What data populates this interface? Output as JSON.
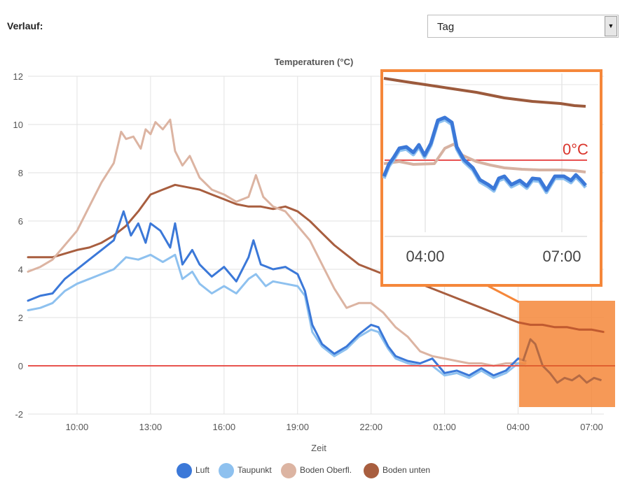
{
  "header": {
    "title": "Verlauf:"
  },
  "range_select": {
    "value": "Tag",
    "arrow_glyph": "▼"
  },
  "inset": {
    "label": "0°C",
    "ticks": [
      "04:00",
      "07:00"
    ]
  },
  "colors": {
    "luft": "#3b78d8",
    "taupunkt": "#8ec1ef",
    "boden_oberfl": "#dcb4a2",
    "boden_unten": "#a85e3f",
    "zero_line": "#e8544e",
    "highlight": "#f5873a"
  },
  "chart_data": {
    "type": "line",
    "title": "Temperaturen (°C)",
    "xlabel": "Zeit",
    "ylabel": "",
    "ylim": [
      -2,
      12
    ],
    "yticks": [
      -2,
      0,
      2,
      4,
      6,
      8,
      10,
      12
    ],
    "xlim": [
      8,
      31.5
    ],
    "xticks": [
      {
        "value": 10,
        "label": "10:00"
      },
      {
        "value": 13,
        "label": "13:00"
      },
      {
        "value": 16,
        "label": "16:00"
      },
      {
        "value": 19,
        "label": "19:00"
      },
      {
        "value": 22,
        "label": "22:00"
      },
      {
        "value": 25,
        "label": "01:00"
      },
      {
        "value": 28,
        "label": "04:00"
      },
      {
        "value": 31,
        "label": "07:00"
      }
    ],
    "grid": true,
    "legend_position": "bottom",
    "reference_line": 0,
    "series": [
      {
        "name": "Luft",
        "x": [
          8,
          8.5,
          9,
          9.5,
          10,
          10.5,
          11,
          11.5,
          11.9,
          12.2,
          12.5,
          12.8,
          13.0,
          13.4,
          13.8,
          14.0,
          14.3,
          14.7,
          15,
          15.5,
          16,
          16.5,
          17,
          17.2,
          17.5,
          18,
          18.5,
          19,
          19.3,
          19.6,
          20,
          20.5,
          21,
          21.5,
          22,
          22.3,
          22.7,
          23,
          23.5,
          24,
          24.5,
          25,
          25.5,
          26,
          26.5,
          27,
          27.5,
          28,
          28.3
        ],
        "values": [
          2.7,
          2.9,
          3.0,
          3.6,
          4.0,
          4.4,
          4.8,
          5.2,
          6.4,
          5.4,
          5.9,
          5.1,
          5.9,
          5.6,
          4.9,
          5.9,
          4.2,
          4.8,
          4.2,
          3.7,
          4.1,
          3.5,
          4.5,
          5.2,
          4.2,
          4.0,
          4.1,
          3.8,
          3.1,
          1.7,
          0.9,
          0.5,
          0.8,
          1.3,
          1.7,
          1.6,
          0.8,
          0.4,
          0.2,
          0.1,
          0.3,
          -0.3,
          -0.2,
          -0.4,
          -0.1,
          -0.4,
          -0.2,
          0.3,
          0.2
        ]
      },
      {
        "name": "Taupunkt",
        "x": [
          8,
          8.5,
          9,
          9.5,
          10,
          10.5,
          11,
          11.5,
          12,
          12.5,
          13,
          13.5,
          14,
          14.3,
          14.7,
          15,
          15.5,
          16,
          16.5,
          17,
          17.3,
          17.7,
          18,
          18.5,
          19,
          19.3,
          19.6,
          20,
          20.5,
          21,
          21.5,
          22,
          22.3,
          22.7,
          23,
          23.5,
          24,
          24.5,
          25,
          25.5,
          26,
          26.5,
          27,
          27.5,
          28,
          28.3
        ],
        "values": [
          2.3,
          2.4,
          2.6,
          3.1,
          3.4,
          3.6,
          3.8,
          4.0,
          4.5,
          4.4,
          4.6,
          4.3,
          4.6,
          3.6,
          3.9,
          3.4,
          3.0,
          3.3,
          3.0,
          3.6,
          3.8,
          3.3,
          3.5,
          3.4,
          3.3,
          2.9,
          1.4,
          0.8,
          0.4,
          0.7,
          1.2,
          1.5,
          1.4,
          0.7,
          0.3,
          0.1,
          0.0,
          0.0,
          -0.4,
          -0.3,
          -0.5,
          -0.2,
          -0.5,
          -0.3,
          0.1,
          0.0
        ]
      },
      {
        "name": "Boden Oberfl.",
        "x": [
          8,
          8.5,
          9,
          9.5,
          10,
          10.5,
          11,
          11.5,
          11.8,
          12.0,
          12.3,
          12.6,
          12.8,
          13.0,
          13.2,
          13.5,
          13.8,
          14.0,
          14.3,
          14.6,
          15,
          15.5,
          16,
          16.5,
          17,
          17.3,
          17.6,
          18,
          18.5,
          19,
          19.5,
          20,
          20.5,
          21,
          21.5,
          22,
          22.5,
          23,
          23.5,
          24,
          24.5,
          25,
          25.5,
          26,
          26.5,
          27,
          27.5,
          28,
          28.3
        ],
        "values": [
          3.9,
          4.1,
          4.4,
          5.0,
          5.6,
          6.6,
          7.6,
          8.4,
          9.7,
          9.4,
          9.5,
          9.0,
          9.8,
          9.6,
          10.1,
          9.8,
          10.2,
          8.9,
          8.3,
          8.7,
          7.8,
          7.3,
          7.1,
          6.8,
          7.0,
          7.9,
          7.0,
          6.6,
          6.4,
          5.8,
          5.2,
          4.2,
          3.2,
          2.4,
          2.6,
          2.6,
          2.2,
          1.6,
          1.2,
          0.6,
          0.4,
          0.3,
          0.2,
          0.1,
          0.1,
          0.0,
          0.1,
          0.1,
          0.1
        ]
      },
      {
        "name": "Boden unten",
        "x": [
          8,
          9,
          10,
          10.5,
          11,
          11.5,
          12,
          12.5,
          13,
          13.5,
          14,
          14.5,
          15,
          15.5,
          16,
          16.5,
          17,
          17.5,
          18,
          18.5,
          19,
          19.5,
          20,
          20.5,
          21,
          21.5,
          22,
          22.5,
          23,
          23.5,
          24,
          24.5,
          25,
          25.5,
          26,
          26.5,
          27,
          27.5,
          28,
          28.5,
          29,
          29.5,
          30,
          30.5,
          31,
          31.5
        ],
        "values": [
          4.5,
          4.5,
          4.8,
          4.9,
          5.1,
          5.4,
          5.8,
          6.4,
          7.1,
          7.3,
          7.5,
          7.4,
          7.3,
          7.1,
          6.9,
          6.7,
          6.6,
          6.6,
          6.5,
          6.6,
          6.4,
          6.0,
          5.5,
          5.0,
          4.6,
          4.2,
          4.0,
          3.8,
          3.6,
          3.5,
          3.4,
          3.2,
          3.0,
          2.8,
          2.6,
          2.4,
          2.2,
          2.0,
          1.8,
          1.7,
          1.7,
          1.6,
          1.6,
          1.5,
          1.5,
          1.4
        ]
      }
    ]
  }
}
